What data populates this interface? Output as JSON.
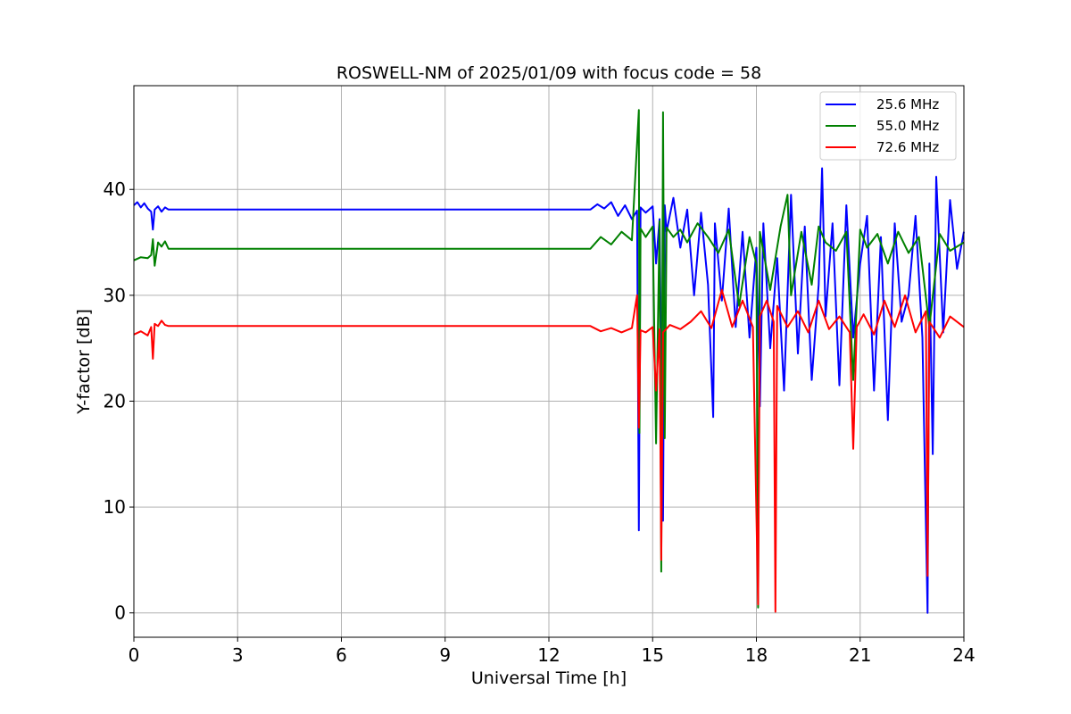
{
  "chart_data": {
    "type": "line",
    "title": "ROSWELL-NM of 2025/01/09 with focus code = 58",
    "xlabel": "Universal Time [h]",
    "ylabel": "Y-factor [dB]",
    "xlim": [
      0,
      24
    ],
    "ylim": [
      -2.3,
      49.8
    ],
    "xticks": [
      0,
      3,
      6,
      9,
      12,
      15,
      18,
      21,
      24
    ],
    "yticks": [
      0,
      10,
      20,
      30,
      40
    ],
    "grid": true,
    "legend_position": "top-right",
    "series": [
      {
        "name": "25.6 MHz",
        "color": "#0000ff",
        "x": [
          0,
          0.1,
          0.2,
          0.3,
          0.4,
          0.5,
          0.55,
          0.6,
          0.7,
          0.8,
          0.9,
          1.0,
          13.2,
          13.4,
          13.6,
          13.8,
          14.0,
          14.2,
          14.4,
          14.55,
          14.6,
          14.65,
          14.8,
          15.0,
          15.1,
          15.2,
          15.3,
          15.35,
          15.4,
          15.6,
          15.8,
          16.0,
          16.2,
          16.4,
          16.6,
          16.75,
          16.8,
          17.0,
          17.2,
          17.4,
          17.6,
          17.8,
          18.0,
          18.1,
          18.2,
          18.4,
          18.6,
          18.8,
          19.0,
          19.2,
          19.4,
          19.6,
          19.8,
          19.9,
          20.0,
          20.2,
          20.4,
          20.6,
          20.8,
          21.0,
          21.2,
          21.4,
          21.6,
          21.8,
          22.0,
          22.2,
          22.4,
          22.6,
          22.8,
          22.95,
          23.0,
          23.1,
          23.2,
          23.4,
          23.6,
          23.8,
          24.0
        ],
        "y": [
          38.5,
          38.8,
          38.3,
          38.7,
          38.2,
          37.9,
          36.2,
          38.1,
          38.4,
          37.9,
          38.3,
          38.1,
          38.1,
          38.6,
          38.2,
          38.8,
          37.5,
          38.5,
          37.2,
          38.0,
          7.8,
          38.3,
          37.8,
          38.4,
          33.0,
          37.2,
          8.7,
          38.5,
          36.0,
          39.2,
          34.5,
          38.1,
          30.0,
          37.8,
          31.0,
          18.5,
          36.8,
          29.5,
          38.2,
          27.0,
          36.0,
          26.0,
          34.5,
          19.5,
          36.8,
          25.0,
          33.5,
          21.0,
          39.5,
          24.5,
          36.5,
          22.0,
          31.0,
          42.0,
          28.0,
          36.8,
          21.5,
          38.5,
          26.0,
          33.0,
          37.5,
          21.0,
          35.5,
          18.2,
          36.8,
          27.5,
          30.0,
          37.5,
          26.0,
          0.0,
          33.0,
          15.0,
          41.2,
          26.5,
          39.0,
          32.5,
          36.0
        ]
      },
      {
        "name": "55.0 MHz",
        "color": "#008000",
        "x": [
          0,
          0.2,
          0.4,
          0.5,
          0.55,
          0.6,
          0.7,
          0.8,
          0.9,
          1.0,
          13.2,
          13.5,
          13.8,
          14.1,
          14.4,
          14.6,
          14.62,
          14.65,
          14.8,
          15.0,
          15.1,
          15.2,
          15.25,
          15.3,
          15.35,
          15.4,
          15.6,
          15.8,
          16.0,
          16.3,
          16.6,
          16.9,
          17.2,
          17.5,
          17.8,
          18.0,
          18.05,
          18.1,
          18.4,
          18.7,
          18.9,
          19.0,
          19.3,
          19.6,
          19.8,
          20.0,
          20.3,
          20.6,
          20.8,
          21.0,
          21.2,
          21.5,
          21.8,
          22.1,
          22.4,
          22.7,
          23.0,
          23.3,
          23.6,
          24.0
        ],
        "y": [
          33.3,
          33.6,
          33.5,
          33.8,
          35.3,
          32.8,
          35.0,
          34.6,
          35.1,
          34.4,
          34.4,
          35.5,
          34.8,
          36.0,
          35.2,
          47.5,
          17.0,
          36.3,
          35.5,
          36.5,
          16.0,
          37.0,
          3.9,
          47.3,
          16.5,
          36.4,
          35.5,
          36.2,
          35.0,
          36.8,
          35.5,
          34.0,
          36.2,
          29.0,
          35.5,
          33.0,
          0.5,
          36.0,
          30.5,
          36.5,
          39.5,
          30.0,
          36.0,
          31.0,
          36.5,
          35.0,
          34.2,
          36.0,
          22.0,
          36.2,
          34.5,
          35.8,
          33.0,
          36.0,
          34.0,
          35.5,
          27.0,
          35.8,
          34.2,
          35.0
        ]
      },
      {
        "name": "72.6 MHz",
        "color": "#ff0000",
        "x": [
          0,
          0.2,
          0.4,
          0.5,
          0.55,
          0.6,
          0.7,
          0.8,
          0.9,
          1.0,
          13.2,
          13.5,
          13.8,
          14.1,
          14.4,
          14.55,
          14.6,
          14.65,
          14.8,
          15.0,
          15.1,
          15.2,
          15.25,
          15.3,
          15.5,
          15.8,
          16.1,
          16.4,
          16.7,
          17.0,
          17.3,
          17.6,
          17.9,
          18.05,
          18.1,
          18.3,
          18.5,
          18.55,
          18.6,
          18.9,
          19.2,
          19.5,
          19.8,
          20.1,
          20.4,
          20.7,
          20.8,
          20.9,
          21.1,
          21.4,
          21.7,
          22.0,
          22.3,
          22.6,
          22.9,
          22.95,
          23.0,
          23.3,
          23.6,
          24.0
        ],
        "y": [
          26.3,
          26.6,
          26.2,
          27.0,
          24.0,
          27.3,
          27.1,
          27.6,
          27.2,
          27.1,
          27.1,
          26.6,
          26.9,
          26.5,
          26.9,
          30.0,
          17.5,
          26.7,
          26.5,
          27.0,
          21.0,
          26.8,
          5.0,
          26.5,
          27.2,
          26.8,
          27.5,
          28.5,
          26.9,
          30.5,
          27.0,
          29.5,
          27.0,
          0.8,
          28.0,
          29.5,
          27.5,
          0.1,
          29.0,
          27.0,
          28.5,
          26.5,
          29.5,
          26.8,
          28.0,
          26.5,
          15.5,
          27.0,
          28.2,
          26.3,
          29.5,
          27.0,
          30.0,
          26.5,
          28.5,
          3.5,
          27.5,
          26.0,
          28.0,
          27.0
        ]
      }
    ]
  }
}
